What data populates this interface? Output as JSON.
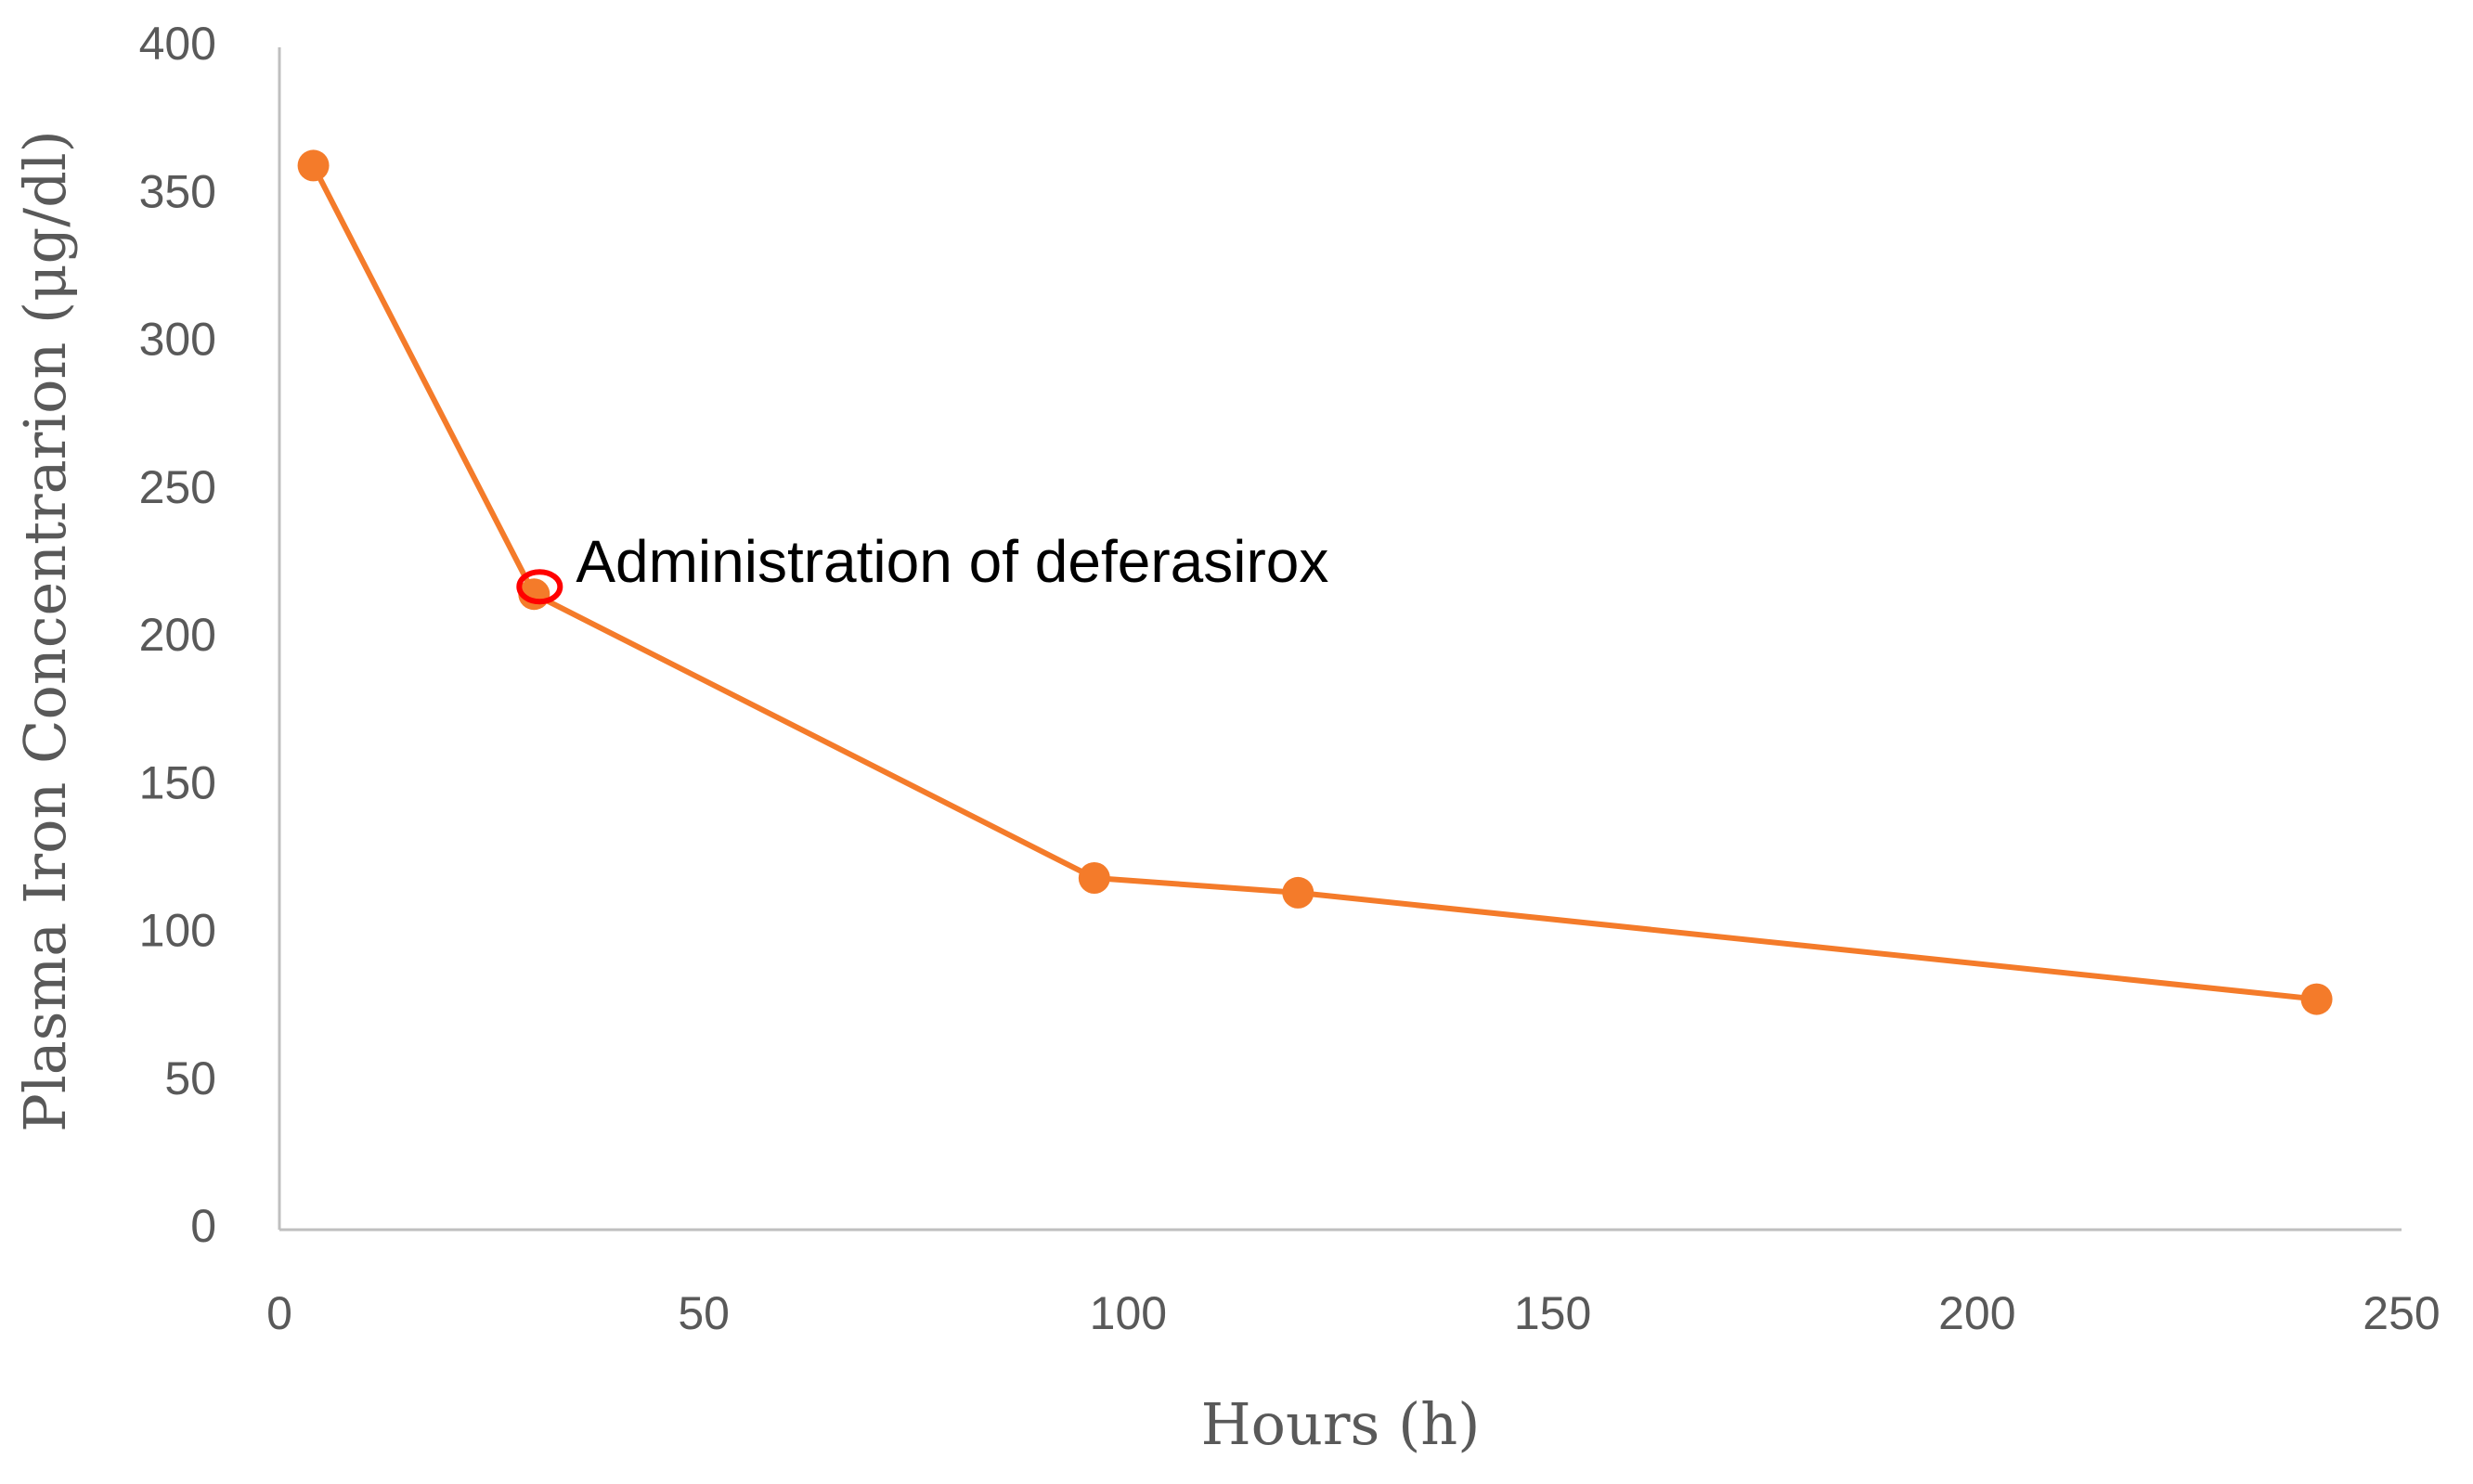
{
  "chart_data": {
    "type": "line",
    "x_label": "Hours (h)",
    "y_label": "Plasma  Iron Concentrarion (μg/dl)",
    "annotation": "Administration of deferasirox",
    "x": [
      4,
      30,
      96,
      120,
      240
    ],
    "series": [
      {
        "name": "Plasma Iron Concentration",
        "color": "#f47b2a",
        "values": [
          360,
          215,
          119,
          114,
          78
        ]
      }
    ],
    "xlim": [
      0,
      250
    ],
    "xticks": [
      0,
      50,
      100,
      150,
      200,
      250
    ],
    "ylim": [
      0,
      400
    ],
    "yticks": [
      0,
      50,
      100,
      150,
      200,
      250,
      300,
      350,
      400
    ],
    "grid": false
  }
}
